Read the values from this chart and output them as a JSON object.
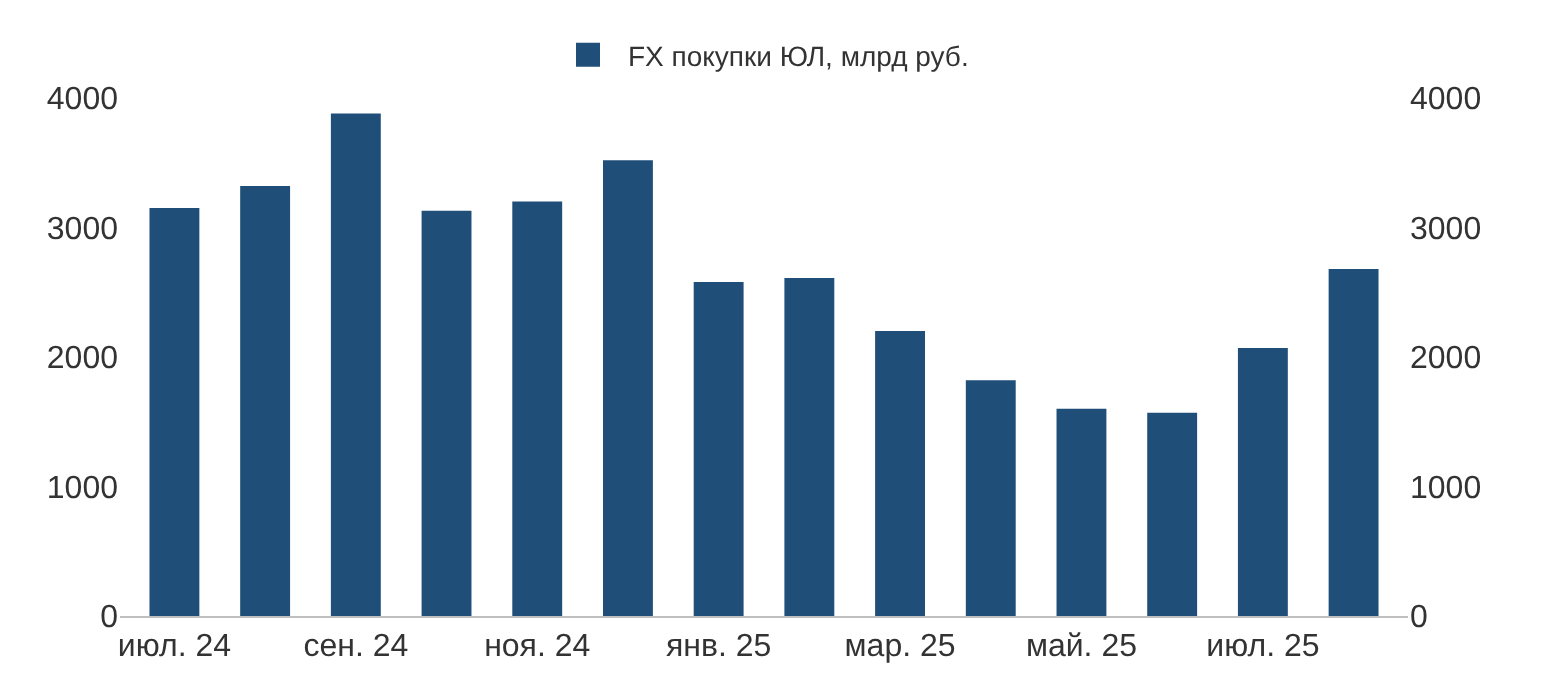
{
  "chart_data": {
    "type": "bar",
    "categories": [
      "июл. 24",
      null,
      "сен. 24",
      null,
      "ноя. 24",
      null,
      "янв. 25",
      null,
      "мар. 25",
      null,
      "май. 25",
      null,
      "июл. 25",
      null
    ],
    "series": [
      {
        "name": "FX покупки ЮЛ, млрд руб.",
        "color": "#1f4e79",
        "values": [
          3150,
          3320,
          3880,
          3130,
          3200,
          3520,
          2580,
          2610,
          2200,
          1820,
          1600,
          1570,
          2070,
          2680
        ]
      }
    ],
    "ylim": [
      0,
      4000
    ],
    "yticks": [
      0,
      1000,
      2000,
      3000,
      4000
    ],
    "y2lim": [
      0,
      4000
    ],
    "y2ticks": [
      0,
      1000,
      2000,
      3000,
      4000
    ],
    "grid": false,
    "legend": "top"
  }
}
